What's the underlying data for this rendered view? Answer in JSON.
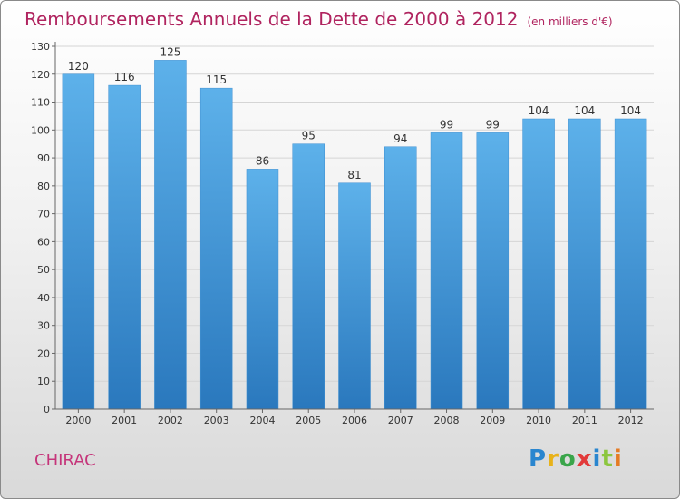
{
  "title": "Remboursements Annuels de la Dette de 2000 à 2012",
  "unit": "(en milliers d'€)",
  "place": "CHIRAC",
  "logo": "Proxiti",
  "colors": {
    "title": "#b0245f",
    "bar_top": "#5db1ea",
    "bar_bottom": "#2a78bd",
    "place": "#c5357a"
  },
  "chart_data": {
    "type": "bar",
    "title": "Remboursements Annuels de la Dette de 2000 à 2012",
    "subtitle": "(en milliers d'€)",
    "categories": [
      "2000",
      "2001",
      "2002",
      "2003",
      "2004",
      "2005",
      "2006",
      "2007",
      "2008",
      "2009",
      "2010",
      "2011",
      "2012"
    ],
    "values": [
      120,
      116,
      125,
      115,
      86,
      95,
      81,
      94,
      99,
      99,
      104,
      104,
      104
    ],
    "ylim": [
      0,
      130
    ],
    "yticks": [
      0,
      10,
      20,
      30,
      40,
      50,
      60,
      70,
      80,
      90,
      100,
      110,
      120,
      130
    ],
    "grid": true
  }
}
